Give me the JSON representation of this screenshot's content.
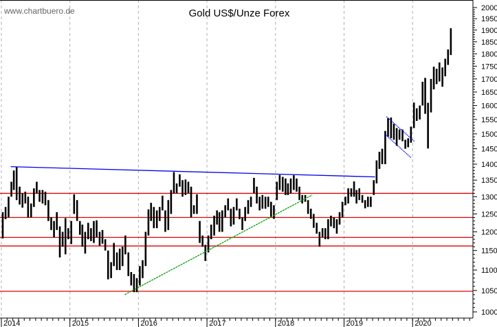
{
  "watermark": "www.chartbuero.de",
  "chart_data": {
    "type": "bar",
    "subtype": "high-low price bars",
    "title": "Gold US$/Unze Forex",
    "xlabel": "",
    "ylabel": "",
    "y_scale": "log",
    "ylim": [
      1000,
      2000
    ],
    "y_ticks": [
      1000,
      1050,
      1100,
      1150,
      1200,
      1250,
      1300,
      1350,
      1400,
      1450,
      1500,
      1550,
      1600,
      1650,
      1700,
      1750,
      1800,
      1850,
      1900,
      1950,
      2000
    ],
    "x_ticks": [
      "2014",
      "2015",
      "2016",
      "2017",
      "2018",
      "2019",
      "2020"
    ],
    "xlim": [
      "2014-01-01",
      "2020-12-31"
    ],
    "grid": "vertical dashed at year boundaries",
    "y_axis_side": "right",
    "colors": {
      "bars": "#000000",
      "support": "#dd0000",
      "resistance": "#0000ee",
      "trend": "#00a000",
      "grid": "#b0b0b0"
    },
    "bars_fields": [
      "date",
      "low",
      "high"
    ],
    "bars": [
      [
        "2014-01-01",
        1182,
        1255
      ],
      [
        "2014-01-16",
        1235,
        1270
      ],
      [
        "2014-02-01",
        1240,
        1300
      ],
      [
        "2014-02-16",
        1300,
        1345
      ],
      [
        "2014-03-01",
        1320,
        1380
      ],
      [
        "2014-03-16",
        1290,
        1392
      ],
      [
        "2014-04-01",
        1277,
        1330
      ],
      [
        "2014-04-16",
        1268,
        1310
      ],
      [
        "2014-05-01",
        1280,
        1315
      ],
      [
        "2014-05-16",
        1240,
        1300
      ],
      [
        "2014-06-01",
        1240,
        1280
      ],
      [
        "2014-06-16",
        1270,
        1325
      ],
      [
        "2014-07-01",
        1310,
        1345
      ],
      [
        "2014-07-16",
        1285,
        1320
      ],
      [
        "2014-08-01",
        1280,
        1320
      ],
      [
        "2014-08-16",
        1275,
        1315
      ],
      [
        "2014-09-01",
        1230,
        1290
      ],
      [
        "2014-09-16",
        1205,
        1240
      ],
      [
        "2014-10-01",
        1185,
        1230
      ],
      [
        "2014-10-16",
        1205,
        1255
      ],
      [
        "2014-11-01",
        1132,
        1215
      ],
      [
        "2014-11-16",
        1160,
        1200
      ],
      [
        "2014-12-01",
        1140,
        1238
      ],
      [
        "2014-12-16",
        1180,
        1210
      ],
      [
        "2015-01-01",
        1167,
        1230
      ],
      [
        "2015-01-16",
        1250,
        1307
      ],
      [
        "2015-02-01",
        1230,
        1290
      ],
      [
        "2015-02-16",
        1192,
        1230
      ],
      [
        "2015-03-01",
        1160,
        1220
      ],
      [
        "2015-03-16",
        1142,
        1200
      ],
      [
        "2015-04-01",
        1180,
        1225
      ],
      [
        "2015-04-16",
        1175,
        1210
      ],
      [
        "2015-05-01",
        1170,
        1230
      ],
      [
        "2015-05-16",
        1185,
        1232
      ],
      [
        "2015-06-01",
        1163,
        1200
      ],
      [
        "2015-06-16",
        1168,
        1205
      ],
      [
        "2015-07-01",
        1150,
        1180
      ],
      [
        "2015-07-16",
        1077,
        1150
      ],
      [
        "2015-08-01",
        1080,
        1120
      ],
      [
        "2015-08-16",
        1110,
        1170
      ],
      [
        "2015-09-01",
        1100,
        1145
      ],
      [
        "2015-09-16",
        1100,
        1155
      ],
      [
        "2015-10-01",
        1110,
        1160
      ],
      [
        "2015-10-16",
        1140,
        1190
      ],
      [
        "2015-11-01",
        1085,
        1145
      ],
      [
        "2015-11-16",
        1062,
        1095
      ],
      [
        "2015-12-01",
        1046,
        1090
      ],
      [
        "2015-12-16",
        1046,
        1080
      ],
      [
        "2016-01-01",
        1062,
        1110
      ],
      [
        "2016-01-16",
        1080,
        1125
      ],
      [
        "2016-02-01",
        1110,
        1200
      ],
      [
        "2016-02-16",
        1190,
        1263
      ],
      [
        "2016-03-01",
        1230,
        1282
      ],
      [
        "2016-03-16",
        1210,
        1270
      ],
      [
        "2016-04-01",
        1210,
        1260
      ],
      [
        "2016-04-16",
        1230,
        1270
      ],
      [
        "2016-05-01",
        1260,
        1303
      ],
      [
        "2016-05-16",
        1200,
        1260
      ],
      [
        "2016-06-01",
        1205,
        1290
      ],
      [
        "2016-06-16",
        1250,
        1320
      ],
      [
        "2016-07-01",
        1310,
        1375
      ],
      [
        "2016-07-16",
        1310,
        1340
      ],
      [
        "2016-08-01",
        1330,
        1368
      ],
      [
        "2016-08-16",
        1300,
        1350
      ],
      [
        "2016-09-01",
        1305,
        1352
      ],
      [
        "2016-09-16",
        1310,
        1345
      ],
      [
        "2016-10-01",
        1240,
        1330
      ],
      [
        "2016-10-16",
        1250,
        1275
      ],
      [
        "2016-11-01",
        1250,
        1307
      ],
      [
        "2016-11-16",
        1170,
        1230
      ],
      [
        "2016-12-01",
        1160,
        1190
      ],
      [
        "2016-12-16",
        1123,
        1165
      ],
      [
        "2017-01-01",
        1145,
        1190
      ],
      [
        "2017-01-16",
        1180,
        1220
      ],
      [
        "2017-02-01",
        1190,
        1245
      ],
      [
        "2017-02-16",
        1220,
        1260
      ],
      [
        "2017-03-01",
        1200,
        1255
      ],
      [
        "2017-03-16",
        1200,
        1260
      ],
      [
        "2017-04-01",
        1240,
        1275
      ],
      [
        "2017-04-16",
        1260,
        1295
      ],
      [
        "2017-05-01",
        1215,
        1265
      ],
      [
        "2017-05-16",
        1220,
        1270
      ],
      [
        "2017-06-01",
        1260,
        1295
      ],
      [
        "2017-06-16",
        1235,
        1265
      ],
      [
        "2017-07-01",
        1205,
        1240
      ],
      [
        "2017-07-16",
        1230,
        1270
      ],
      [
        "2017-08-01",
        1250,
        1290
      ],
      [
        "2017-08-16",
        1270,
        1300
      ],
      [
        "2017-09-01",
        1310,
        1357
      ],
      [
        "2017-09-16",
        1280,
        1330
      ],
      [
        "2017-10-01",
        1260,
        1300
      ],
      [
        "2017-10-16",
        1265,
        1305
      ],
      [
        "2017-11-01",
        1265,
        1300
      ],
      [
        "2017-11-16",
        1270,
        1300
      ],
      [
        "2017-12-01",
        1240,
        1285
      ],
      [
        "2017-12-16",
        1236,
        1275
      ],
      [
        "2018-01-01",
        1290,
        1345
      ],
      [
        "2018-01-16",
        1320,
        1366
      ],
      [
        "2018-02-01",
        1315,
        1360
      ],
      [
        "2018-02-16",
        1305,
        1355
      ],
      [
        "2018-03-01",
        1305,
        1340
      ],
      [
        "2018-03-16",
        1310,
        1355
      ],
      [
        "2018-04-01",
        1320,
        1365
      ],
      [
        "2018-04-16",
        1315,
        1355
      ],
      [
        "2018-05-01",
        1290,
        1330
      ],
      [
        "2018-05-16",
        1280,
        1305
      ],
      [
        "2018-06-01",
        1285,
        1305
      ],
      [
        "2018-06-16",
        1250,
        1290
      ],
      [
        "2018-07-01",
        1236,
        1265
      ],
      [
        "2018-07-16",
        1211,
        1250
      ],
      [
        "2018-08-01",
        1195,
        1225
      ],
      [
        "2018-08-16",
        1160,
        1200
      ],
      [
        "2018-09-01",
        1185,
        1210
      ],
      [
        "2018-09-16",
        1180,
        1210
      ],
      [
        "2018-10-01",
        1180,
        1235
      ],
      [
        "2018-10-16",
        1215,
        1245
      ],
      [
        "2018-11-01",
        1210,
        1240
      ],
      [
        "2018-11-16",
        1195,
        1235
      ],
      [
        "2018-12-01",
        1220,
        1255
      ],
      [
        "2018-12-16",
        1240,
        1285
      ],
      [
        "2019-01-01",
        1275,
        1300
      ],
      [
        "2019-01-16",
        1280,
        1325
      ],
      [
        "2019-02-01",
        1300,
        1325
      ],
      [
        "2019-02-16",
        1300,
        1346
      ],
      [
        "2019-03-01",
        1280,
        1320
      ],
      [
        "2019-03-16",
        1290,
        1325
      ],
      [
        "2019-04-01",
        1282,
        1305
      ],
      [
        "2019-04-16",
        1266,
        1290
      ],
      [
        "2019-05-01",
        1270,
        1300
      ],
      [
        "2019-05-16",
        1270,
        1300
      ],
      [
        "2019-06-01",
        1305,
        1350
      ],
      [
        "2019-06-16",
        1340,
        1412
      ],
      [
        "2019-07-01",
        1385,
        1440
      ],
      [
        "2019-07-16",
        1400,
        1450
      ],
      [
        "2019-08-01",
        1400,
        1510
      ],
      [
        "2019-08-16",
        1490,
        1555
      ],
      [
        "2019-09-01",
        1485,
        1557
      ],
      [
        "2019-09-16",
        1480,
        1535
      ],
      [
        "2019-10-01",
        1460,
        1520
      ],
      [
        "2019-10-16",
        1480,
        1515
      ],
      [
        "2019-11-01",
        1475,
        1515
      ],
      [
        "2019-11-16",
        1450,
        1480
      ],
      [
        "2019-12-01",
        1455,
        1485
      ],
      [
        "2019-12-16",
        1470,
        1525
      ],
      [
        "2020-01-01",
        1520,
        1611
      ],
      [
        "2020-01-16",
        1545,
        1590
      ],
      [
        "2020-02-01",
        1550,
        1600
      ],
      [
        "2020-02-16",
        1600,
        1689
      ],
      [
        "2020-03-01",
        1570,
        1704
      ],
      [
        "2020-03-16",
        1451,
        1610
      ],
      [
        "2020-04-01",
        1575,
        1700
      ],
      [
        "2020-04-16",
        1660,
        1748
      ],
      [
        "2020-05-01",
        1680,
        1740
      ],
      [
        "2020-05-16",
        1690,
        1765
      ],
      [
        "2020-06-01",
        1670,
        1745
      ],
      [
        "2020-06-16",
        1710,
        1780
      ],
      [
        "2020-07-01",
        1755,
        1818
      ],
      [
        "2020-07-16",
        1795,
        1908
      ]
    ],
    "horizontal_lines": [
      {
        "value": 1310,
        "color": "#dd0000",
        "from": "2014-01-01",
        "to": "2020-12-31"
      },
      {
        "value": 1240,
        "color": "#dd0000",
        "from": "2014-01-01",
        "to": "2020-11-30"
      },
      {
        "value": 1185,
        "color": "#dd0000",
        "from": "2014-01-01",
        "to": "2020-12-31"
      },
      {
        "value": 1162,
        "color": "#dd0000",
        "from": "2014-01-01",
        "to": "2020-12-31"
      },
      {
        "value": 1048,
        "color": "#dd0000",
        "from": "2014-01-01",
        "to": "2020-12-31"
      }
    ],
    "trend_lines": [
      {
        "kind": "resistance",
        "color": "#0000ee",
        "style": "solid",
        "from": [
          "2014-02-20",
          1392
        ],
        "to": [
          "2019-06-15",
          1360
        ]
      },
      {
        "kind": "support",
        "color": "#00a000",
        "style": "dashed",
        "from": [
          "2015-10-20",
          1040
        ],
        "to": [
          "2018-07-15",
          1305
        ]
      },
      {
        "kind": "channel-upper",
        "color": "#0000ee",
        "style": "dotted",
        "from": [
          "2019-08-15",
          1560
        ],
        "to": [
          "2020-01-10",
          1475
        ]
      },
      {
        "kind": "channel-lower",
        "color": "#0000ee",
        "style": "dotted",
        "from": [
          "2019-08-05",
          1500
        ],
        "to": [
          "2019-12-25",
          1420
        ]
      }
    ]
  }
}
